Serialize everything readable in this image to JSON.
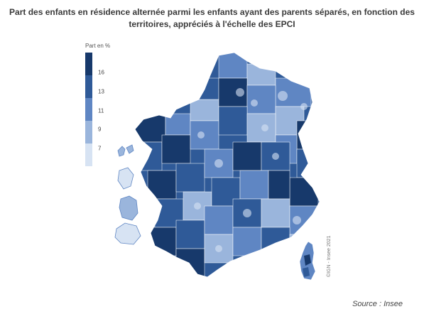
{
  "title": "Part des enfants en résidence alternée parmi les enfants ayant des parents séparés, en fonction des territoires, appréciés à l'échelle des EPCI",
  "legend": {
    "title": "Part en %",
    "ticks": [
      "16",
      "13",
      "11",
      "9",
      "7"
    ],
    "colors": [
      "#17396b",
      "#2f5a98",
      "#5f86c3",
      "#9ab5dc",
      "#d7e3f3"
    ]
  },
  "credit": "©IGN - Insee 2021",
  "source": "Source : Insee",
  "map": {
    "regions": [
      "France métropolitaine",
      "Corse",
      "Guadeloupe",
      "Martinique",
      "Guyane",
      "La Réunion"
    ],
    "colors": {
      "darkest": "#17396b",
      "dark": "#2f5a98",
      "mid": "#5f86c3",
      "light": "#9ab5dc",
      "lightest": "#d7e3f3",
      "border": "#ffffff"
    }
  }
}
